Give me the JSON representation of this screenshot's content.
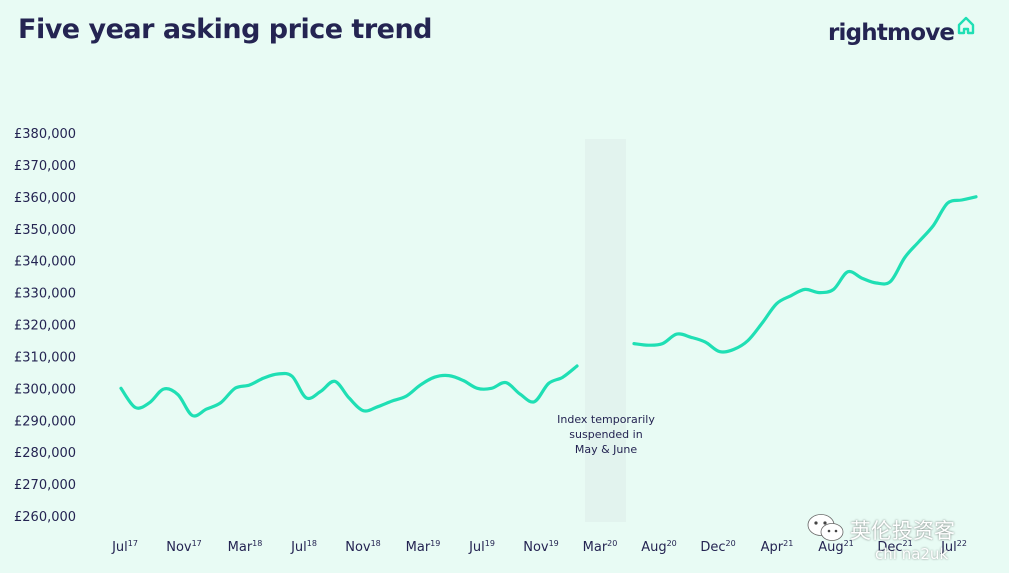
{
  "header": {
    "title": "Five year asking price trend",
    "logo_text": "rightmove",
    "logo_icon": "house-outline-icon"
  },
  "watermark": {
    "icon": "wechat-icon",
    "text": "英伦投资客",
    "subtext": "chi na2uk"
  },
  "colors": {
    "background": "#e8fbf4",
    "line": "#1fdfb4",
    "title": "#242452",
    "gap_band": "#e2f3ee"
  },
  "chart_data": {
    "type": "line",
    "title": "Five year asking price trend",
    "xlabel": "",
    "ylabel": "",
    "ylim": [
      260000,
      380000
    ],
    "grid": false,
    "y_ticks": [
      "£260,000",
      "£270,000",
      "£280,000",
      "£290,000",
      "£300,000",
      "£310,000",
      "£320,000",
      "£330,000",
      "£340,000",
      "£350,000",
      "£360,000",
      "£370,000",
      "£380,000"
    ],
    "x_ticks": [
      {
        "month": "Jul",
        "year": "17"
      },
      {
        "month": "Nov",
        "year": "17"
      },
      {
        "month": "Mar",
        "year": "18"
      },
      {
        "month": "Jul",
        "year": "18"
      },
      {
        "month": "Nov",
        "year": "18"
      },
      {
        "month": "Mar",
        "year": "19"
      },
      {
        "month": "Jul",
        "year": "19"
      },
      {
        "month": "Nov",
        "year": "19"
      },
      {
        "month": "Mar",
        "year": "20"
      },
      {
        "month": "Aug",
        "year": "20"
      },
      {
        "month": "Dec",
        "year": "20"
      },
      {
        "month": "Apr",
        "year": "21"
      },
      {
        "month": "Aug",
        "year": "21"
      },
      {
        "month": "Dec",
        "year": "21"
      },
      {
        "month": "Jul",
        "year": "22"
      }
    ],
    "gap": {
      "label": "Index temporarily suspended in May & June"
    },
    "series": [
      {
        "segments": [
          [
            {
              "x": "2017-07",
              "y": 300000
            },
            {
              "x": "2017-08",
              "y": 294000
            },
            {
              "x": "2017-09",
              "y": 295500
            },
            {
              "x": "2017-10",
              "y": 299800
            },
            {
              "x": "2017-11",
              "y": 298000
            },
            {
              "x": "2017-12",
              "y": 291500
            },
            {
              "x": "2018-01",
              "y": 293500
            },
            {
              "x": "2018-02",
              "y": 295500
            },
            {
              "x": "2018-03",
              "y": 300000
            },
            {
              "x": "2018-04",
              "y": 301000
            },
            {
              "x": "2018-05",
              "y": 303200
            },
            {
              "x": "2018-06",
              "y": 304500
            },
            {
              "x": "2018-07",
              "y": 303800
            },
            {
              "x": "2018-08",
              "y": 297000
            },
            {
              "x": "2018-09",
              "y": 299000
            },
            {
              "x": "2018-10",
              "y": 302200
            },
            {
              "x": "2018-11",
              "y": 297000
            },
            {
              "x": "2018-12",
              "y": 293000
            },
            {
              "x": "2019-01",
              "y": 294200
            },
            {
              "x": "2019-02",
              "y": 296000
            },
            {
              "x": "2019-03",
              "y": 297500
            },
            {
              "x": "2019-04",
              "y": 301000
            },
            {
              "x": "2019-05",
              "y": 303500
            },
            {
              "x": "2019-06",
              "y": 304000
            },
            {
              "x": "2019-07",
              "y": 302500
            },
            {
              "x": "2019-08",
              "y": 300000
            },
            {
              "x": "2019-09",
              "y": 300000
            },
            {
              "x": "2019-10",
              "y": 301800
            },
            {
              "x": "2019-11",
              "y": 298200
            },
            {
              "x": "2019-12",
              "y": 295800
            },
            {
              "x": "2020-01",
              "y": 301500
            },
            {
              "x": "2020-02",
              "y": 303500
            },
            {
              "x": "2020-03",
              "y": 307000
            }
          ],
          [
            {
              "x": "2020-07",
              "y": 314000
            },
            {
              "x": "2020-08",
              "y": 313500
            },
            {
              "x": "2020-09",
              "y": 314000
            },
            {
              "x": "2020-10",
              "y": 317000
            },
            {
              "x": "2020-11",
              "y": 316000
            },
            {
              "x": "2020-12",
              "y": 314500
            },
            {
              "x": "2021-01",
              "y": 311500
            },
            {
              "x": "2021-02",
              "y": 312200
            },
            {
              "x": "2021-03",
              "y": 315000
            },
            {
              "x": "2021-04",
              "y": 320500
            },
            {
              "x": "2021-05",
              "y": 326500
            },
            {
              "x": "2021-06",
              "y": 329000
            },
            {
              "x": "2021-07",
              "y": 331000
            },
            {
              "x": "2021-08",
              "y": 330000
            },
            {
              "x": "2021-09",
              "y": 331000
            },
            {
              "x": "2021-10",
              "y": 336500
            },
            {
              "x": "2021-11",
              "y": 334500
            },
            {
              "x": "2021-12",
              "y": 333000
            },
            {
              "x": "2022-01",
              "y": 333500
            },
            {
              "x": "2022-02",
              "y": 341000
            },
            {
              "x": "2022-03",
              "y": 346000
            },
            {
              "x": "2022-04",
              "y": 351000
            },
            {
              "x": "2022-05",
              "y": 358000
            },
            {
              "x": "2022-06",
              "y": 359000
            },
            {
              "x": "2022-07",
              "y": 360000
            }
          ]
        ]
      }
    ]
  }
}
